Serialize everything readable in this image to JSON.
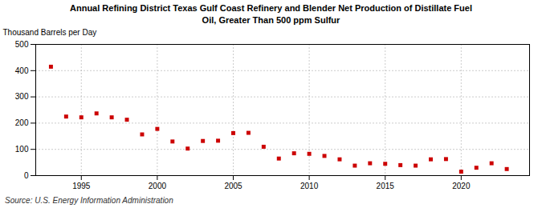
{
  "chart_data": {
    "type": "scatter",
    "title": "Annual Refining District Texas Gulf Coast Refinery and Blender Net Production of Distillate Fuel\nOil, Greater Than 500 ppm Sulfur",
    "ylabel": "Thousand Barrels per Day",
    "caption": "Source: U.S. Energy Information Administration",
    "x": [
      1993,
      1994,
      1995,
      1996,
      1997,
      1998,
      1999,
      2000,
      2001,
      2002,
      2003,
      2004,
      2005,
      2006,
      2007,
      2008,
      2009,
      2010,
      2011,
      2012,
      2013,
      2014,
      2015,
      2016,
      2017,
      2018,
      2019,
      2020,
      2021,
      2022,
      2023
    ],
    "values": [
      415,
      225,
      222,
      237,
      222,
      213,
      157,
      178,
      130,
      103,
      132,
      133,
      162,
      163,
      110,
      65,
      85,
      83,
      75,
      62,
      38,
      47,
      45,
      40,
      38,
      62,
      63,
      15,
      30,
      47,
      25
    ],
    "color": "#cc0000",
    "marker": "square",
    "xlim": [
      1992,
      2024.5
    ],
    "xticks": [
      1995,
      2000,
      2005,
      2010,
      2015,
      2020
    ],
    "ylim": [
      0,
      500
    ],
    "yticks": [
      0,
      100,
      200,
      300,
      400,
      500
    ],
    "grid": true
  }
}
